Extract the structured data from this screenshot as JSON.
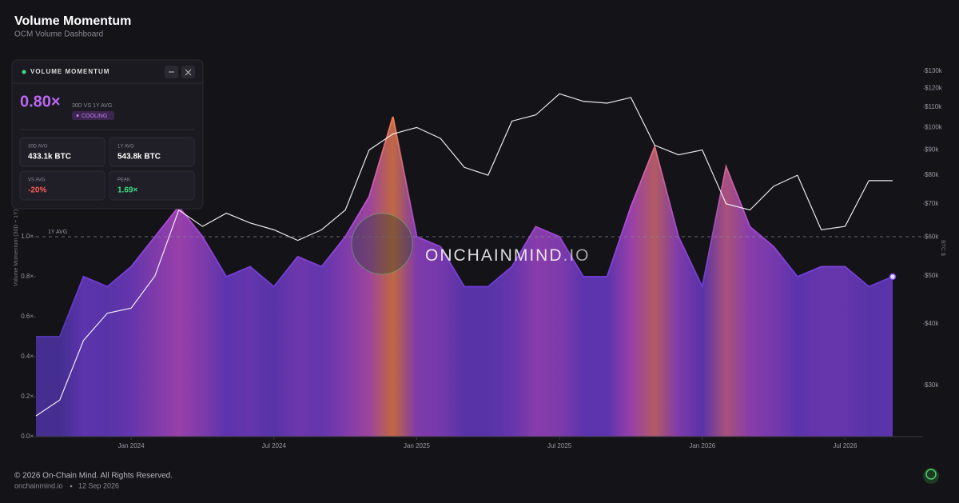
{
  "chart_data": {
    "type": "area",
    "title": "Volume Momentum",
    "subtitle": "OCM Volume Dashboard",
    "y_label": "Volume Momentum (30D ÷ 1Y)",
    "y2_label": "BTC $",
    "reference_line": {
      "value": 1,
      "label": "1Y AVG"
    },
    "watermark": {
      "name": "ONCHAINMIND",
      "suffix": ".IO"
    },
    "x": [
      "2023-09",
      "2023-10",
      "2023-11",
      "2023-12",
      "2024-01",
      "2024-02",
      "2024-03",
      "2024-04",
      "2024-05",
      "2024-06",
      "2024-07",
      "2024-08",
      "2024-09",
      "2024-10",
      "2024-11",
      "2024-12",
      "2025-01",
      "2025-02",
      "2025-03",
      "2025-04",
      "2025-05",
      "2025-06",
      "2025-07",
      "2025-08",
      "2025-09",
      "2025-10",
      "2025-11",
      "2025-12",
      "2026-01",
      "2026-02",
      "2026-03",
      "2026-04",
      "2026-05",
      "2026-06",
      "2026-07",
      "2026-08",
      "2026-09"
    ],
    "xlim": [
      "2023-09",
      "2026-09"
    ],
    "xticks": [
      {
        "value": "2024-01",
        "label": "Jan 2024"
      },
      {
        "value": "2024-07",
        "label": "Jul 2024"
      },
      {
        "value": "2025-01",
        "label": "Jan 2025"
      },
      {
        "value": "2025-07",
        "label": "Jul 2025"
      },
      {
        "value": "2026-01",
        "label": "Jan 2026"
      },
      {
        "value": "2026-07",
        "label": "Jul 2026"
      }
    ],
    "ylim": [
      0,
      1.864
    ],
    "yticks": [
      {
        "value": 0,
        "label": "0.0×"
      },
      {
        "value": 0.2,
        "label": "0.2×"
      },
      {
        "value": 0.4,
        "label": "0.4×"
      },
      {
        "value": 0.6,
        "label": "0.6×"
      },
      {
        "value": 0.8,
        "label": "0.8×"
      },
      {
        "value": 1,
        "label": "1.0×"
      }
    ],
    "y2lim": [
      23600,
      134500
    ],
    "y2log": true,
    "y2ticks": [
      {
        "value": 30000,
        "label": "$30k"
      },
      {
        "value": 40000,
        "label": "$40k"
      },
      {
        "value": 50000,
        "label": "$50k"
      },
      {
        "value": 60000,
        "label": "$60k"
      },
      {
        "value": 70000,
        "label": "$70k"
      },
      {
        "value": 80000,
        "label": "$80k"
      },
      {
        "value": 90000,
        "label": "$90k"
      },
      {
        "value": 100000,
        "label": "$100k"
      },
      {
        "value": 110000,
        "label": "$110k"
      },
      {
        "value": 120000,
        "label": "$120k"
      },
      {
        "value": 130000,
        "label": "$130k"
      }
    ],
    "series": [
      {
        "name": "Volume Momentum",
        "type": "area",
        "color": "#7b4fe0",
        "values": [
          0.5,
          0.5,
          0.8,
          0.75,
          0.85,
          1.0,
          1.15,
          1.0,
          0.8,
          0.85,
          0.75,
          0.9,
          0.85,
          1.0,
          1.2,
          1.6,
          1.0,
          0.95,
          0.75,
          0.75,
          0.85,
          1.05,
          1.0,
          0.8,
          0.8,
          1.15,
          1.45,
          1.0,
          0.75,
          1.35,
          1.05,
          0.95,
          0.8,
          0.85,
          0.85,
          0.75,
          0.8
        ]
      },
      {
        "name": "BTC Price",
        "type": "line",
        "axis": "y2",
        "color": "#ffffff",
        "values": [
          26000,
          28000,
          37000,
          42000,
          43000,
          50000,
          68000,
          63000,
          67000,
          64000,
          62000,
          59000,
          62000,
          68000,
          90000,
          97000,
          100000,
          95000,
          83000,
          80000,
          103000,
          106000,
          117000,
          113000,
          112000,
          115000,
          92000,
          88000,
          90000,
          70000,
          68000,
          76000,
          80000,
          62000,
          63000,
          78000,
          78000
        ]
      }
    ]
  },
  "panel": {
    "title": "VOLUME MOMENTUM",
    "value": "0.80×",
    "caption": "30D VS 1Y AVG",
    "status": "COOLING",
    "stats": [
      {
        "label": "30D AVG",
        "value": "433.1k BTC"
      },
      {
        "label": "1Y AVG",
        "value": "543.8k BTC"
      },
      {
        "label": "VS AVG",
        "value": "-20%"
      },
      {
        "label": "PEAK",
        "value": "1.69×"
      }
    ]
  },
  "footer": {
    "copyright": "© 2026 On-Chain Mind. All Rights Reserved.",
    "site": "onchainmind.io",
    "date": "12 Sep 2026"
  }
}
